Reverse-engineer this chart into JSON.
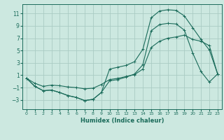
{
  "xlabel": "Humidex (Indice chaleur)",
  "bg_color": "#cce8e0",
  "grid_color": "#aaccc4",
  "line_color": "#1a6b5a",
  "xlim": [
    -0.5,
    23.5
  ],
  "ylim": [
    -4.5,
    12.5
  ],
  "yticks": [
    -3,
    -1,
    1,
    3,
    5,
    7,
    9,
    11
  ],
  "xticks": [
    0,
    1,
    2,
    3,
    4,
    5,
    6,
    7,
    8,
    9,
    10,
    11,
    12,
    13,
    14,
    15,
    16,
    17,
    18,
    19,
    20,
    21,
    22,
    23
  ],
  "line1_x": [
    0,
    1,
    2,
    3,
    4,
    5,
    6,
    7,
    8,
    9,
    10,
    11,
    12,
    13,
    14,
    15,
    16,
    17,
    18,
    19,
    20,
    21,
    22,
    23
  ],
  "line1_y": [
    0.5,
    -0.8,
    -1.5,
    -1.4,
    -1.8,
    -2.3,
    -2.6,
    -3.1,
    -2.9,
    -1.8,
    2.0,
    2.3,
    2.6,
    3.2,
    5.2,
    10.3,
    11.4,
    11.6,
    11.5,
    10.6,
    8.7,
    6.8,
    5.1,
    1.2
  ],
  "line2_x": [
    0,
    1,
    2,
    3,
    4,
    5,
    6,
    7,
    8,
    9,
    10,
    11,
    12,
    13,
    14,
    15,
    16,
    17,
    18,
    19,
    20,
    21,
    22,
    23
  ],
  "line2_y": [
    0.5,
    -0.8,
    -1.5,
    -1.4,
    -1.8,
    -2.3,
    -2.6,
    -3.1,
    -2.9,
    -1.8,
    0.1,
    0.3,
    0.7,
    1.2,
    2.7,
    8.2,
    9.2,
    9.4,
    9.3,
    8.3,
    4.6,
    1.6,
    -0.1,
    1.2
  ],
  "line3_x": [
    0,
    1,
    2,
    3,
    4,
    5,
    6,
    7,
    8,
    9,
    10,
    11,
    12,
    13,
    14,
    15,
    16,
    17,
    18,
    19,
    20,
    21,
    22,
    23
  ],
  "line3_y": [
    0.5,
    -0.3,
    -0.8,
    -0.6,
    -0.7,
    -0.9,
    -1.0,
    -1.2,
    -1.1,
    -0.5,
    0.3,
    0.5,
    0.8,
    1.1,
    2.0,
    5.5,
    6.5,
    7.0,
    7.2,
    7.5,
    6.8,
    6.5,
    5.8,
    1.2
  ]
}
